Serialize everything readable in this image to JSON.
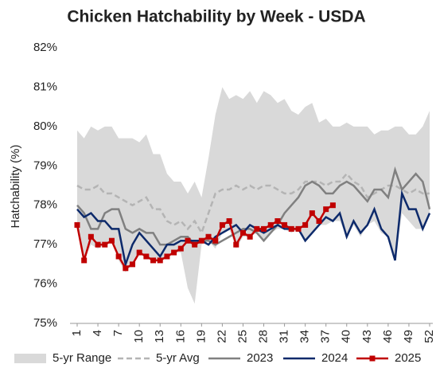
{
  "chart_data": {
    "type": "line",
    "title": "Chicken Hatchability by Week - USDA",
    "y_label": "Hatchability (%)",
    "x": [
      1,
      2,
      3,
      4,
      5,
      6,
      7,
      8,
      9,
      10,
      11,
      12,
      13,
      14,
      15,
      16,
      17,
      18,
      19,
      20,
      21,
      22,
      23,
      24,
      25,
      26,
      27,
      28,
      29,
      30,
      31,
      32,
      33,
      34,
      35,
      36,
      37,
      38,
      39,
      40,
      41,
      42,
      43,
      44,
      45,
      46,
      47,
      48,
      49,
      50,
      51,
      52
    ],
    "xlim": [
      1,
      52
    ],
    "xticks": [
      1,
      4,
      7,
      10,
      13,
      16,
      19,
      22,
      25,
      28,
      31,
      34,
      37,
      40,
      43,
      46,
      49,
      52
    ],
    "ylim": [
      75,
      82
    ],
    "yticks": [
      {
        "value": 75,
        "label": "75%"
      },
      {
        "value": 76,
        "label": "76%"
      },
      {
        "value": 77,
        "label": "77%"
      },
      {
        "value": 78,
        "label": "78%"
      },
      {
        "value": 79,
        "label": "79%"
      },
      {
        "value": 80,
        "label": "80%"
      },
      {
        "value": 81,
        "label": "81%"
      },
      {
        "value": 82,
        "label": "82%"
      }
    ],
    "legend": "bottom",
    "series": [
      {
        "name": "5-yr Range",
        "kind": "range",
        "color": "#d9d9d9",
        "high": [
          79.9,
          79.7,
          80.0,
          79.9,
          80.0,
          80.0,
          79.7,
          79.7,
          79.7,
          79.6,
          79.8,
          79.3,
          79.3,
          78.8,
          78.6,
          78.6,
          78.3,
          78.6,
          78.2,
          79.2,
          80.3,
          81.0,
          80.7,
          80.8,
          80.7,
          80.9,
          80.6,
          80.9,
          80.8,
          80.6,
          80.7,
          80.4,
          80.3,
          80.5,
          80.6,
          80.1,
          80.2,
          80.0,
          80.0,
          80.1,
          80.0,
          80.0,
          80.0,
          79.8,
          79.9,
          79.9,
          80.0,
          80.0,
          79.8,
          79.8,
          80.0,
          80.4
        ],
        "low": [
          77.5,
          76.6,
          77.0,
          76.9,
          77.0,
          77.1,
          76.6,
          76.3,
          76.5,
          76.8,
          76.7,
          76.6,
          76.6,
          76.7,
          76.8,
          76.8,
          75.9,
          75.5,
          77.0,
          77.1,
          76.9,
          77.3,
          77.4,
          76.9,
          77.2,
          77.2,
          77.3,
          77.1,
          77.3,
          77.4,
          77.4,
          77.3,
          77.4,
          77.1,
          77.3,
          77.5,
          77.5,
          77.6,
          77.6,
          77.2,
          77.5,
          77.2,
          77.5,
          77.6,
          77.3,
          77.2,
          76.6,
          77.8,
          77.6,
          77.4,
          77.4,
          77.8
        ]
      },
      {
        "name": "5-yr Avg",
        "kind": "dashed",
        "color": "#b4b4b4",
        "values": [
          78.5,
          78.4,
          78.4,
          78.5,
          78.3,
          78.3,
          78.2,
          78.1,
          78.0,
          78.1,
          78.2,
          77.9,
          77.9,
          77.6,
          77.5,
          77.6,
          77.4,
          77.6,
          77.3,
          77.8,
          78.3,
          78.4,
          78.4,
          78.5,
          78.4,
          78.5,
          78.4,
          78.5,
          78.5,
          78.4,
          78.3,
          78.3,
          78.4,
          78.6,
          78.6,
          78.6,
          78.5,
          78.6,
          78.6,
          78.8,
          78.6,
          78.5,
          78.2,
          78.3,
          78.4,
          78.5,
          78.5,
          78.4,
          78.3,
          78.4,
          78.3,
          78.3
        ]
      },
      {
        "name": "2023",
        "kind": "line",
        "color": "#808080",
        "values": [
          78.0,
          77.8,
          77.4,
          77.4,
          77.8,
          77.9,
          77.9,
          77.4,
          77.3,
          77.4,
          77.3,
          77.3,
          77.0,
          77.0,
          77.1,
          77.2,
          77.2,
          77.0,
          77.1,
          77.1,
          77.0,
          77.1,
          77.2,
          77.3,
          77.4,
          77.4,
          77.3,
          77.1,
          77.3,
          77.5,
          77.8,
          78.0,
          78.2,
          78.5,
          78.6,
          78.5,
          78.3,
          78.3,
          78.5,
          78.6,
          78.5,
          78.3,
          78.1,
          78.4,
          78.4,
          78.2,
          78.9,
          78.4,
          78.6,
          78.8,
          78.6,
          77.9
        ]
      },
      {
        "name": "2024",
        "kind": "line",
        "color": "#0d2a6b",
        "values": [
          77.9,
          77.7,
          77.8,
          77.6,
          77.6,
          77.4,
          77.4,
          76.5,
          77.0,
          77.3,
          77.1,
          76.9,
          76.7,
          77.0,
          77.0,
          77.1,
          77.1,
          77.1,
          77.1,
          77.0,
          77.2,
          77.3,
          77.4,
          77.5,
          77.3,
          77.5,
          77.4,
          77.3,
          77.4,
          77.5,
          77.4,
          77.4,
          77.4,
          77.1,
          77.3,
          77.5,
          77.7,
          77.6,
          77.8,
          77.2,
          77.6,
          77.3,
          77.5,
          77.9,
          77.4,
          77.2,
          76.6,
          78.3,
          77.9,
          77.9,
          77.4,
          77.8
        ]
      },
      {
        "name": "2025",
        "kind": "marker-line",
        "color": "#c00000",
        "values": [
          77.5,
          76.6,
          77.2,
          77.0,
          77.0,
          77.1,
          76.7,
          76.4,
          76.5,
          76.8,
          76.7,
          76.6,
          76.6,
          76.7,
          76.8,
          76.9,
          77.1,
          77.0,
          77.1,
          77.2,
          77.1,
          77.5,
          77.6,
          77.0,
          77.3,
          77.2,
          77.4,
          77.4,
          77.5,
          77.6,
          77.5,
          77.4,
          77.4,
          77.5,
          77.8,
          77.6,
          77.9,
          78.0,
          null,
          null,
          null,
          null,
          null,
          null,
          null,
          null,
          null,
          null,
          null,
          null,
          null,
          null
        ]
      }
    ]
  }
}
